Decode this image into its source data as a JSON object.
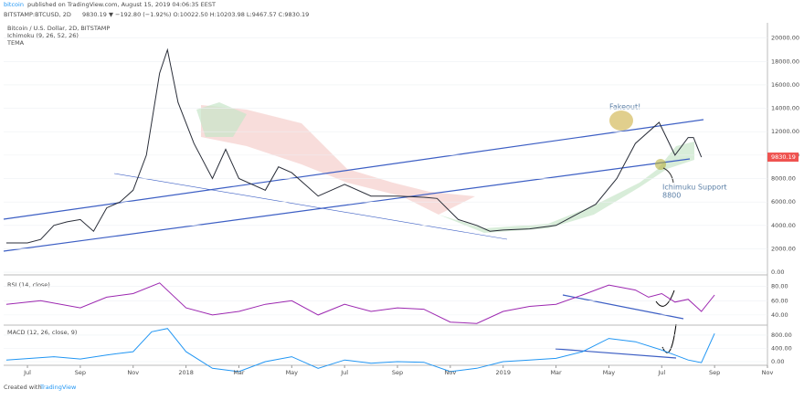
{
  "header": {
    "publisher": "bitcoin",
    "published": "published on TradingView.com, August 15, 2019 04:06:35 EEST",
    "symbol": "BITSTAMP:BTCUSD, 2D",
    "quote": "9830.19 ▼ −192.80 (−1.92%) O:10022.50 H:10203.98 L:9467.57 C:9830.19"
  },
  "footer": {
    "created": "Created with",
    "brand": "TradingView"
  },
  "chart_data": [
    {
      "type": "line",
      "title": "Bitcoin / U.S. Dollar, 2D, BITSTAMP",
      "indicators": [
        "Ichimoku (9, 26, 52, 26)",
        "TEMA"
      ],
      "x": [
        -0.8,
        0,
        0.5,
        1,
        1.5,
        2,
        2.5,
        3,
        3.5,
        4,
        4.5,
        5,
        5.3,
        5.7,
        6.3,
        7,
        7.5,
        8,
        9,
        9.5,
        10,
        11,
        12,
        13,
        14,
        15,
        15.5,
        16.3,
        17,
        17.5,
        18,
        19,
        20,
        21,
        21.5,
        22.3,
        23,
        23.9,
        24.5,
        25,
        25.2,
        25.5
      ],
      "series": [
        {
          "name": "BTCUSD",
          "color": "#2a2e39",
          "values": [
            2500,
            2500,
            2800,
            4000,
            4300,
            4500,
            3500,
            5500,
            6000,
            7000,
            10000,
            17000,
            19000,
            14500,
            11000,
            8000,
            10500,
            8000,
            7000,
            9000,
            8500,
            6500,
            7500,
            6500,
            6500,
            6400,
            6300,
            4500,
            4000,
            3500,
            3600,
            3700,
            4000,
            5200,
            5800,
            8000,
            11000,
            12800,
            10000,
            11500,
            11500,
            9830
          ]
        }
      ],
      "xlim": [
        -0.9,
        28
      ],
      "ylim": [
        -150,
        21300
      ],
      "xticks": [
        {
          "value": 0,
          "label": "Jul"
        },
        {
          "value": 2,
          "label": "Sep"
        },
        {
          "value": 4,
          "label": "Nov"
        },
        {
          "value": 6,
          "label": "2018"
        },
        {
          "value": 8,
          "label": "Mar"
        },
        {
          "value": 10,
          "label": "May"
        },
        {
          "value": 12,
          "label": "Jul"
        },
        {
          "value": 14,
          "label": "Sep"
        },
        {
          "value": 16,
          "label": "Nov"
        },
        {
          "value": 18,
          "label": "2019"
        },
        {
          "value": 20,
          "label": "Mar"
        },
        {
          "value": 22,
          "label": "May"
        },
        {
          "value": 24,
          "label": "Jul"
        },
        {
          "value": 26,
          "label": "Sep"
        },
        {
          "value": 28,
          "label": "Nov"
        }
      ],
      "yticks": [
        {
          "value": 0,
          "label": "0.00"
        },
        {
          "value": 2000,
          "label": "2000.00"
        },
        {
          "value": 4000,
          "label": "4000.00"
        },
        {
          "value": 6000,
          "label": "6000.00"
        },
        {
          "value": 8000,
          "label": "8000.00"
        },
        {
          "value": 10000,
          "label": "10000.00"
        },
        {
          "value": 12000,
          "label": "12000.00"
        },
        {
          "value": 14000,
          "label": "14000.00"
        },
        {
          "value": 16000,
          "label": "16000.00"
        },
        {
          "value": 18000,
          "label": "18000.00"
        },
        {
          "value": 20000,
          "label": "20000.00"
        }
      ],
      "last_price_label": "9830.19",
      "annotations": [
        "Fakeout!",
        "Ichimuku Support",
        "8800"
      ]
    },
    {
      "type": "line",
      "title": "RSI (14, close)",
      "x": [
        -0.8,
        0.5,
        2,
        3,
        4,
        5,
        6,
        7,
        8,
        9,
        10,
        11,
        12,
        13,
        14,
        15,
        16,
        17,
        18,
        19,
        20,
        21,
        22,
        23,
        23.5,
        24,
        24.5,
        25,
        25.5,
        26
      ],
      "series": [
        {
          "name": "RSI",
          "color": "#9c27b0",
          "values": [
            55,
            60,
            50,
            65,
            70,
            85,
            50,
            40,
            45,
            55,
            60,
            40,
            55,
            45,
            50,
            48,
            30,
            28,
            45,
            52,
            55,
            68,
            82,
            75,
            65,
            70,
            58,
            62,
            45,
            68
          ]
        }
      ],
      "xlim": [
        -0.9,
        28
      ],
      "ylim": [
        27,
        95
      ],
      "yticks": [
        {
          "value": 40,
          "label": "40.00"
        },
        {
          "value": 60,
          "label": "60.00"
        },
        {
          "value": 80,
          "label": "80.00"
        }
      ]
    },
    {
      "type": "line",
      "title": "MACD (12, 26, close, 9)",
      "x": [
        -0.8,
        1,
        2,
        3,
        4,
        4.7,
        5.3,
        6,
        7,
        8,
        9,
        10,
        11,
        12,
        13,
        14,
        15,
        16,
        17,
        18,
        19,
        20,
        21,
        22,
        23,
        24,
        25,
        25.5,
        26
      ],
      "series": [
        {
          "name": "MACD",
          "color": "#2196f3",
          "values": [
            50,
            150,
            80,
            200,
            300,
            900,
            1000,
            300,
            -200,
            -300,
            0,
            150,
            -200,
            50,
            -50,
            0,
            -20,
            -300,
            -200,
            0,
            50,
            100,
            300,
            700,
            600,
            350,
            50,
            -30,
            850
          ]
        }
      ],
      "xlim": [
        -0.9,
        28
      ],
      "ylim": [
        -55,
        1075
      ],
      "yticks": [
        {
          "value": 0,
          "label": "0.00"
        },
        {
          "value": 400,
          "label": "400.00"
        },
        {
          "value": 800,
          "label": "800.00"
        }
      ]
    }
  ]
}
